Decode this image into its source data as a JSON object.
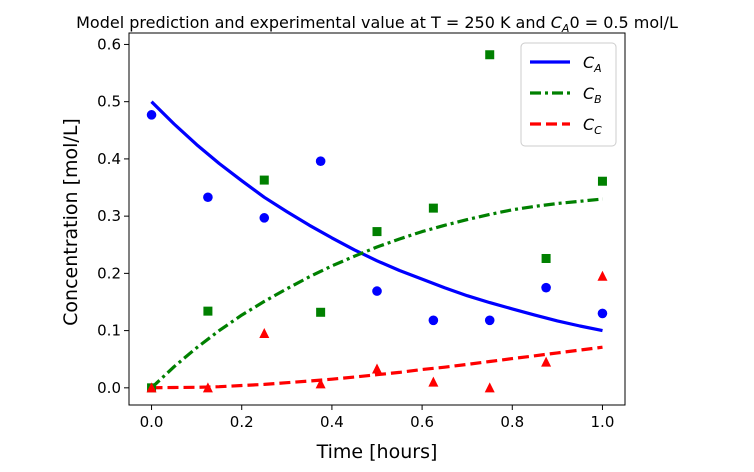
{
  "chart_data": {
    "type": "line",
    "title_prefix": "Model prediction and experimental value at T = 250 K and ",
    "title_var": "C",
    "title_sub": "A",
    "title_suffix": "0 = 0.5 mol/L",
    "xlabel": "Time [hours]",
    "ylabel": "Concentration [mol/L]",
    "xlim": [
      -0.05,
      1.05
    ],
    "ylim": [
      -0.03,
      0.62
    ],
    "xticks": [
      0.0,
      0.2,
      0.4,
      0.6,
      0.8,
      1.0
    ],
    "xtick_labels": [
      "0.0",
      "0.2",
      "0.4",
      "0.6",
      "0.8",
      "1.0"
    ],
    "yticks": [
      0.0,
      0.1,
      0.2,
      0.3,
      0.4,
      0.5,
      0.6
    ],
    "ytick_labels": [
      "0.0",
      "0.1",
      "0.2",
      "0.3",
      "0.4",
      "0.5",
      "0.6"
    ],
    "grid": false,
    "legend_position": "top-right",
    "model_t": [
      0.0,
      0.05,
      0.1,
      0.15,
      0.2,
      0.25,
      0.3,
      0.35,
      0.4,
      0.45,
      0.5,
      0.55,
      0.6,
      0.65,
      0.7,
      0.75,
      0.8,
      0.85,
      0.9,
      0.95,
      1.0
    ],
    "series": [
      {
        "name": "C",
        "sub": "A",
        "color": "#0000ff",
        "line_style": "solid",
        "marker": "circle",
        "model_values": [
          0.5,
          0.461,
          0.425,
          0.392,
          0.362,
          0.333,
          0.308,
          0.284,
          0.262,
          0.241,
          0.222,
          0.205,
          0.19,
          0.175,
          0.161,
          0.149,
          0.138,
          0.127,
          0.117,
          0.108,
          0.1
        ],
        "exp_x": [
          0.0,
          0.125,
          0.25,
          0.375,
          0.5,
          0.625,
          0.75,
          0.875,
          1.0
        ],
        "exp_y": [
          0.477,
          0.333,
          0.297,
          0.396,
          0.169,
          0.118,
          0.118,
          0.175,
          0.13
        ]
      },
      {
        "name": "C",
        "sub": "B",
        "color": "#008000",
        "line_style": "dashdot",
        "marker": "square",
        "model_values": [
          0.0,
          0.037,
          0.07,
          0.1,
          0.127,
          0.151,
          0.173,
          0.194,
          0.213,
          0.23,
          0.246,
          0.26,
          0.273,
          0.284,
          0.294,
          0.303,
          0.311,
          0.317,
          0.322,
          0.326,
          0.33
        ],
        "exp_x": [
          0.0,
          0.125,
          0.25,
          0.375,
          0.5,
          0.625,
          0.75,
          0.875,
          1.0
        ],
        "exp_y": [
          0.0,
          0.134,
          0.363,
          0.132,
          0.273,
          0.314,
          0.582,
          0.226,
          0.361
        ]
      },
      {
        "name": "C",
        "sub": "C",
        "color": "#ff0000",
        "line_style": "dashed",
        "marker": "triangle",
        "model_values": [
          0.0,
          0.0005,
          0.001,
          0.002,
          0.004,
          0.006,
          0.009,
          0.012,
          0.015,
          0.019,
          0.023,
          0.027,
          0.032,
          0.036,
          0.041,
          0.046,
          0.051,
          0.056,
          0.061,
          0.066,
          0.071
        ],
        "exp_x": [
          0.0,
          0.125,
          0.25,
          0.375,
          0.5,
          0.625,
          0.75,
          0.875,
          1.0
        ],
        "exp_y": [
          0.0,
          0.0,
          0.095,
          0.007,
          0.033,
          0.01,
          0.0,
          0.045,
          0.195
        ]
      }
    ]
  }
}
